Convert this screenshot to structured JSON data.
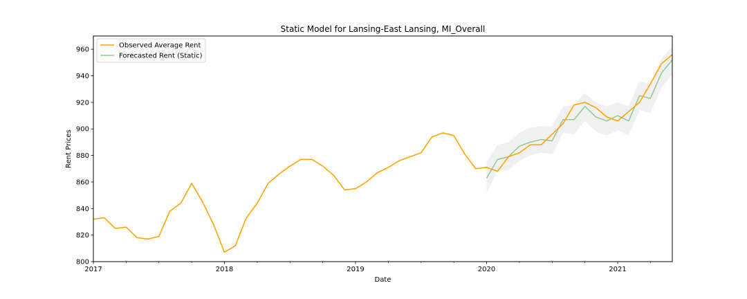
{
  "chart_data": {
    "type": "line",
    "title": "Static Model for Lansing-East Lansing, MI_Overall",
    "xlabel": "Date",
    "ylabel": "Rent Prices",
    "xlim": [
      "2017-01",
      "2021-06"
    ],
    "ylim": [
      800,
      970
    ],
    "x_ticks": [
      {
        "date": "2017-01",
        "label": "2017"
      },
      {
        "date": "2018-01",
        "label": "2018"
      },
      {
        "date": "2019-01",
        "label": "2019"
      },
      {
        "date": "2020-01",
        "label": "2020"
      },
      {
        "date": "2021-01",
        "label": "2021"
      }
    ],
    "y_ticks": [
      800,
      820,
      840,
      860,
      880,
      900,
      920,
      940,
      960
    ],
    "legend_position": "upper-left",
    "grid": false,
    "series": [
      {
        "name": "Observed Average Rent",
        "color": "#ffa500",
        "x": [
          "2017-01",
          "2017-02",
          "2017-03",
          "2017-04",
          "2017-05",
          "2017-06",
          "2017-07",
          "2017-08",
          "2017-09",
          "2017-10",
          "2017-11",
          "2017-12",
          "2018-01",
          "2018-02",
          "2018-03",
          "2018-04",
          "2018-05",
          "2018-06",
          "2018-07",
          "2018-08",
          "2018-09",
          "2018-10",
          "2018-11",
          "2018-12",
          "2019-01",
          "2019-02",
          "2019-03",
          "2019-04",
          "2019-05",
          "2019-06",
          "2019-07",
          "2019-08",
          "2019-09",
          "2019-10",
          "2019-11",
          "2019-12",
          "2020-01",
          "2020-02",
          "2020-03",
          "2020-04",
          "2020-05",
          "2020-06",
          "2020-07",
          "2020-08",
          "2020-09",
          "2020-10",
          "2020-11",
          "2020-12",
          "2021-01",
          "2021-02",
          "2021-03",
          "2021-04",
          "2021-05",
          "2021-06"
        ],
        "values": [
          832,
          833,
          825,
          826,
          818,
          817,
          819,
          838,
          844,
          859,
          845,
          828,
          807,
          812,
          833,
          844,
          859,
          866,
          872,
          877,
          877,
          872,
          865,
          854,
          855,
          860,
          867,
          871,
          876,
          879,
          882,
          894,
          897,
          895,
          881,
          870,
          871,
          868,
          879,
          882,
          888,
          888,
          896,
          904,
          918,
          920,
          916,
          909,
          906,
          913,
          920,
          934,
          949,
          956
        ]
      },
      {
        "name": "Forecasted Rent (Static)",
        "color": "#8fc98f",
        "x": [
          "2020-01",
          "2020-02",
          "2020-03",
          "2020-04",
          "2020-05",
          "2020-06",
          "2020-07",
          "2020-08",
          "2020-09",
          "2020-10",
          "2020-11",
          "2020-12",
          "2021-01",
          "2021-02",
          "2021-03",
          "2021-04",
          "2021-05",
          "2021-06"
        ],
        "values": [
          863,
          877,
          879,
          887,
          890,
          892,
          891,
          907,
          907,
          917,
          909,
          906,
          910,
          906,
          925,
          923,
          942,
          952
        ],
        "lower": [
          852,
          868,
          869,
          876,
          880,
          882,
          881,
          897,
          896,
          906,
          898,
          895,
          899,
          895,
          914,
          912,
          931,
          941
        ],
        "upper": [
          875,
          888,
          890,
          897,
          901,
          902,
          902,
          917,
          918,
          927,
          920,
          917,
          920,
          917,
          936,
          934,
          953,
          962
        ]
      }
    ]
  }
}
